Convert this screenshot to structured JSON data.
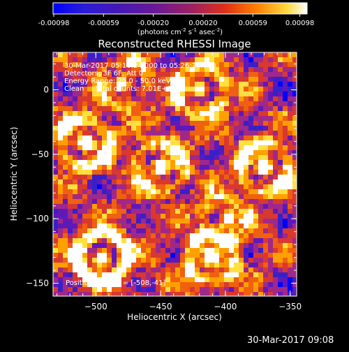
{
  "colorbar": {
    "ticks": [
      "-0.00098",
      "-0.00059",
      "-0.00020",
      "0.00020",
      "0.00059",
      "0.00098"
    ],
    "unit_label": "(photons cm",
    "unit_exp1": "-2",
    "unit_mid": " s",
    "unit_exp2": "-1",
    "unit_mid2": " asec",
    "unit_exp3": "-2",
    "unit_end": ")"
  },
  "chart_data": {
    "type": "heatmap",
    "title": "Reconstructed RHESSI Image",
    "xlabel": "Heliocentric X (arcsec)",
    "ylabel": "Heliocentric Y (arcsec)",
    "xlim": [
      -533,
      -345
    ],
    "ylim": [
      -160,
      29
    ],
    "xticks": [
      -500,
      -450,
      -400,
      -350
    ],
    "yticks": [
      -150,
      -100,
      -50,
      0
    ],
    "colorbar_range": [
      -0.00098,
      0.00098
    ],
    "colormap": [
      "#0000ff",
      "#3820c8",
      "#6018b8",
      "#a02888",
      "#d83830",
      "#f06010",
      "#ffa000",
      "#ffe040",
      "#ffffff"
    ],
    "peak_x": -508,
    "peak_y": -41,
    "annotations": [
      "30-Mar-2017 05:16:24.000 to 05:26:24.000",
      "Detectors: 3F 6F, Att 0",
      "Energy Range: 25.0 - 50.0 keV",
      "Clean     Total counts: 7.01E+03",
      "Position of Peak = [-508,-41]"
    ]
  },
  "timestamp": "30-Mar-2017 09:08"
}
